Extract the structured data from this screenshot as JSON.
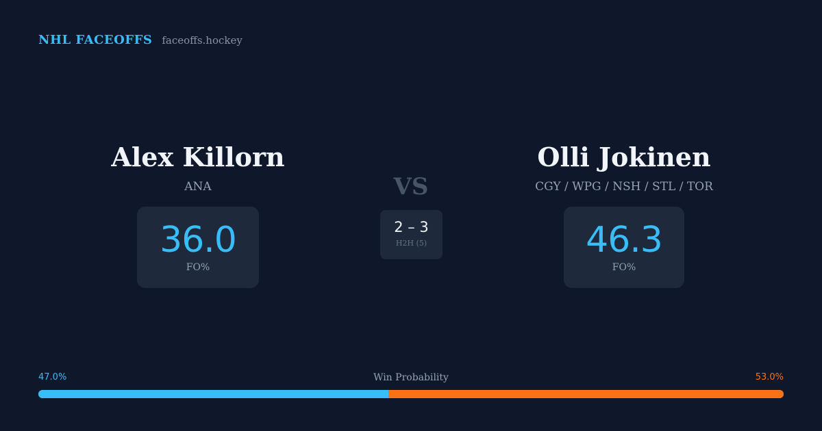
{
  "brand": {
    "name": "NHL FACEOFFS",
    "domain": "faceoffs.hockey"
  },
  "player_a": {
    "name": "Alex Killorn",
    "team": "ANA",
    "stat_value": "36.0",
    "stat_label": "FO%"
  },
  "player_b": {
    "name": "Olli Jokinen",
    "team": "CGY / WPG / NSH / STL / TOR",
    "stat_value": "46.3",
    "stat_label": "FO%"
  },
  "versus": {
    "label": "VS",
    "h2h_score": "2 – 3",
    "h2h_label": "H2H (5)"
  },
  "win_probability": {
    "title": "Win Probability",
    "left_label": "47.0%",
    "right_label": "53.0%",
    "left_fraction": 0.47,
    "left_color": "#38bdf8",
    "right_color": "#f97316"
  },
  "colors": {
    "background": "#0f172a",
    "card": "#1e293b",
    "accent_blue": "#38bdf8",
    "accent_orange": "#f97316"
  }
}
